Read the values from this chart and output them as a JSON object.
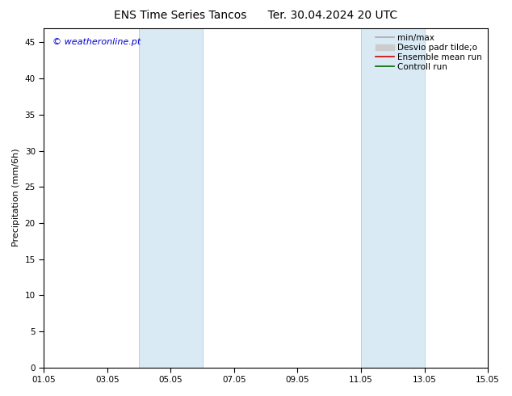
{
  "title": "ENS Time Series Tancos      Ter. 30.04.2024 20 UTC",
  "ylabel": "Precipitation (mm/6h)",
  "xlabel_ticks": [
    "01.05",
    "03.05",
    "05.05",
    "07.05",
    "09.05",
    "11.05",
    "13.05",
    "15.05"
  ],
  "xtick_positions": [
    0,
    2,
    4,
    6,
    8,
    10,
    12,
    14
  ],
  "xlim": [
    0,
    14
  ],
  "ylim": [
    0,
    47
  ],
  "yticks": [
    0,
    5,
    10,
    15,
    20,
    25,
    30,
    35,
    40,
    45
  ],
  "bg_color": "#ffffff",
  "plot_bg_color": "#ffffff",
  "shaded_bands": [
    {
      "xmin": 3.0,
      "xmax": 5.0,
      "color": "#daeaf5"
    },
    {
      "xmin": 10.0,
      "xmax": 12.0,
      "color": "#daeaf5"
    }
  ],
  "band_edge_color": "#b0cce0",
  "legend_items": [
    {
      "label": "min/max",
      "color": "#aaaaaa",
      "lw": 1.2,
      "type": "line"
    },
    {
      "label": "Desvio padr tilde;o",
      "color": "#cccccc",
      "lw": 5,
      "type": "bar"
    },
    {
      "label": "Ensemble mean run",
      "color": "#cc0000",
      "lw": 1.2,
      "type": "line"
    },
    {
      "label": "Controll run",
      "color": "#006600",
      "lw": 1.2,
      "type": "line"
    }
  ],
  "watermark_text": "© weatheronline.pt",
  "watermark_color": "#0000cc",
  "watermark_fontsize": 8,
  "title_fontsize": 10,
  "tick_fontsize": 7.5,
  "ylabel_fontsize": 8,
  "legend_fontsize": 7.5,
  "spine_color": "#000000",
  "tick_color": "#000000"
}
